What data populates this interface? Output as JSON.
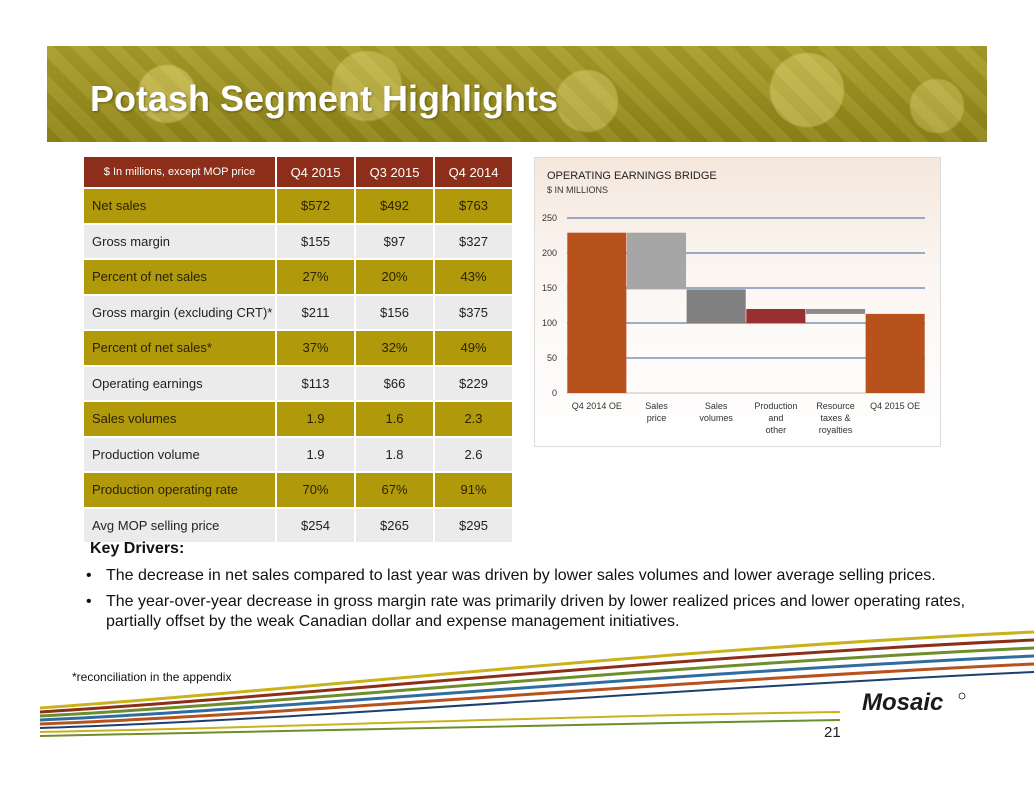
{
  "title": "Potash Segment Highlights",
  "table": {
    "headers": [
      "$ In millions, except MOP price",
      "Q4 2015",
      "Q3 2015",
      "Q4 2014"
    ],
    "rows": [
      {
        "label": "Net sales",
        "values": [
          "$572",
          "$492",
          "$763"
        ],
        "style": "gold"
      },
      {
        "label": "Gross margin",
        "values": [
          "$155",
          "$97",
          "$327"
        ],
        "style": "gray"
      },
      {
        "label": "Percent of net sales",
        "values": [
          "27%",
          "20%",
          "43%"
        ],
        "style": "gold"
      },
      {
        "label": "Gross margin (excluding CRT)*",
        "values": [
          "$211",
          "$156",
          "$375"
        ],
        "style": "gray"
      },
      {
        "label": "Percent of net sales*",
        "values": [
          "37%",
          "32%",
          "49%"
        ],
        "style": "gold"
      },
      {
        "label": "Operating earnings",
        "values": [
          "$113",
          "$66",
          "$229"
        ],
        "style": "gray"
      },
      {
        "label": "Sales volumes",
        "values": [
          "1.9",
          "1.6",
          "2.3"
        ],
        "style": "gold"
      },
      {
        "label": "Production volume",
        "values": [
          "1.9",
          "1.8",
          "2.6"
        ],
        "style": "gray"
      },
      {
        "label": "Production operating rate",
        "values": [
          "70%",
          "67%",
          "91%"
        ],
        "style": "gold"
      },
      {
        "label": "Avg MOP selling price",
        "values": [
          "$254",
          "$265",
          "$295"
        ],
        "style": "gray"
      }
    ]
  },
  "chart_data": {
    "type": "bar",
    "subtype": "waterfall",
    "title": "OPERATING EARNINGS BRIDGE",
    "subtitle": "$ IN MILLIONS",
    "categories": [
      "Q4 2014 OE",
      "Sales price",
      "Sales volumes",
      "Production and other",
      "Resource taxes & royalties",
      "Q4 2015 OE"
    ],
    "category_lines": [
      [
        "Q4 2014 OE"
      ],
      [
        "Sales",
        "price"
      ],
      [
        "Sales",
        "volumes"
      ],
      [
        "Production",
        "and",
        "other"
      ],
      [
        "Resource",
        "taxes &",
        "royalties"
      ],
      [
        "Q4 2015 OE"
      ]
    ],
    "bars": [
      {
        "category": "Q4 2014 OE",
        "kind": "total",
        "start": 0,
        "end": 229
      },
      {
        "category": "Sales price",
        "kind": "decrease",
        "start": 229,
        "end": 148
      },
      {
        "category": "Sales volumes",
        "kind": "decrease",
        "start": 148,
        "end": 100
      },
      {
        "category": "Production and other",
        "kind": "increase",
        "start": 100,
        "end": 120
      },
      {
        "category": "Resource taxes & royalties",
        "kind": "decrease",
        "start": 120,
        "end": 113
      },
      {
        "category": "Q4 2015 OE",
        "kind": "total",
        "start": 0,
        "end": 113
      }
    ],
    "ylim": [
      0,
      250
    ],
    "yticks": [
      0,
      50,
      100,
      150,
      200,
      250
    ],
    "grid": true,
    "colors": {
      "total": "#b8521c",
      "sales_price": "#a6a6a6",
      "sales_volumes": "#808080",
      "production": "#9a2f2f",
      "resource": "#8c8c8c",
      "grid": "#3f5f9a"
    }
  },
  "key_drivers": {
    "heading": "Key  Drivers:",
    "bullets": [
      "The decrease in net  sales compared to last year was driven by lower sales volumes and lower average selling prices.",
      "The year-over-year decrease in gross margin rate was primarily driven by lower realized prices and lower operating rates, partially offset by the weak Canadian dollar and expense management initiatives."
    ],
    "bullet_glyph": "•"
  },
  "footnote": "*reconciliation in the appendix",
  "logo_text": "Mosaic",
  "page_number": "21"
}
